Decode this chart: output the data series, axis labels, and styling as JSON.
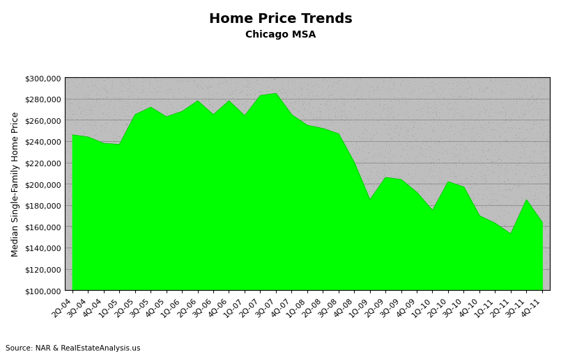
{
  "title": "Home Price Trends",
  "subtitle": "Chicago MSA",
  "ylabel": "Median Single-Family Home Price",
  "source": "Source: NAR & RealEstateAnalysis.us",
  "fill_color": "#00FF00",
  "line_color": "#00BB00",
  "background_color": "#BEBEBE",
  "outer_background": "#FFFFFF",
  "border_color": "#000000",
  "ylim": [
    100000,
    300000
  ],
  "ytick_step": 20000,
  "labels": [
    "2Q-04",
    "3Q-04",
    "4Q-04",
    "1Q-05",
    "2Q-05",
    "3Q-05",
    "4Q-05",
    "1Q-06",
    "2Q-06",
    "3Q-06",
    "4Q-06",
    "1Q-07",
    "2Q-07",
    "3Q-07",
    "4Q-07",
    "1Q-08",
    "2Q-08",
    "3Q-08",
    "4Q-08",
    "1Q-09",
    "2Q-09",
    "3Q-09",
    "4Q-09",
    "1Q-10",
    "2Q-10",
    "3Q-10",
    "4Q-10",
    "1Q-11",
    "2Q-11",
    "3Q-11",
    "4Q-11"
  ],
  "values": [
    246000,
    244000,
    238000,
    237000,
    265000,
    272000,
    263000,
    268000,
    278000,
    265000,
    278000,
    264000,
    283000,
    285000,
    265000,
    255000,
    252000,
    247000,
    220000,
    185000,
    206000,
    204000,
    192000,
    175000,
    202000,
    197000,
    170000,
    163000,
    153000,
    185000,
    164000
  ],
  "title_fontsize": 14,
  "subtitle_fontsize": 10,
  "ylabel_fontsize": 9,
  "tick_fontsize": 8,
  "source_fontsize": 7.5
}
